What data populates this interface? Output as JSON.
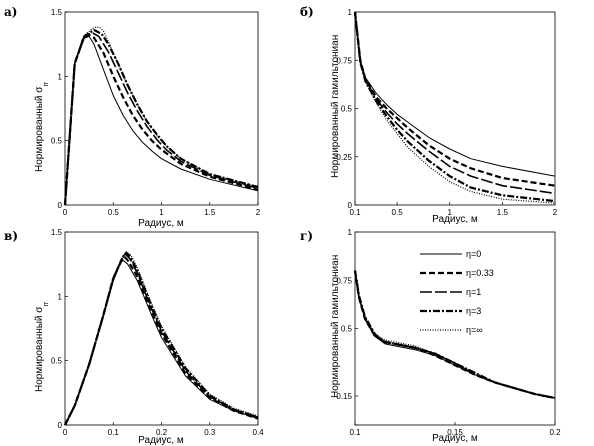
{
  "styles": {
    "solid": {
      "width": 1.0,
      "dash": ""
    },
    "dash": {
      "width": 2.2,
      "dash": "6,3"
    },
    "longdash": {
      "width": 1.6,
      "dash": "12,3"
    },
    "dashdot": {
      "width": 2.2,
      "dash": "7,2,2,2"
    },
    "dotted": {
      "width": 1.2,
      "dash": "1,1.5"
    }
  },
  "legend": [
    {
      "label": "η=0",
      "style": "solid"
    },
    {
      "label": "η=0.33",
      "style": "dash"
    },
    {
      "label": "η=1",
      "style": "longdash"
    },
    {
      "label": "η=3",
      "style": "dashdot"
    },
    {
      "label": "η=∞",
      "style": "dotted"
    }
  ],
  "chart_data": [
    {
      "type": "line",
      "panel_label": "а)",
      "xlabel": "Радиус, м",
      "ylabel": "Нормированный σ",
      "ylabel_sub": "rr",
      "xlim": [
        0,
        2
      ],
      "ylim": [
        0,
        1.5
      ],
      "xticks": [
        0,
        0.5,
        1,
        1.5,
        2
      ],
      "xtick_labels": [
        "0",
        "0.5",
        "1",
        "1.5",
        "2"
      ],
      "yticks": [
        0,
        0.5,
        1,
        1.5
      ],
      "ytick_labels": [
        "0",
        "0.5",
        "1",
        "1.5"
      ],
      "series": [
        {
          "style": "solid",
          "x": [
            0,
            0.1,
            0.18,
            0.25,
            0.3,
            0.4,
            0.5,
            0.6,
            0.7,
            0.8,
            0.9,
            1.0,
            1.2,
            1.5,
            2.0
          ],
          "y": [
            0,
            1.1,
            1.29,
            1.31,
            1.25,
            1.05,
            0.85,
            0.7,
            0.58,
            0.49,
            0.42,
            0.36,
            0.28,
            0.2,
            0.11
          ]
        },
        {
          "style": "dash",
          "x": [
            0,
            0.1,
            0.2,
            0.25,
            0.3,
            0.4,
            0.5,
            0.6,
            0.7,
            0.8,
            0.9,
            1.0,
            1.2,
            1.5,
            2.0
          ],
          "y": [
            0,
            1.1,
            1.31,
            1.32,
            1.3,
            1.18,
            1.0,
            0.84,
            0.7,
            0.59,
            0.5,
            0.43,
            0.32,
            0.22,
            0.12
          ]
        },
        {
          "style": "longdash",
          "x": [
            0,
            0.1,
            0.2,
            0.28,
            0.35,
            0.45,
            0.55,
            0.65,
            0.75,
            0.85,
            0.95,
            1.05,
            1.2,
            1.5,
            2.0
          ],
          "y": [
            0,
            1.1,
            1.31,
            1.34,
            1.31,
            1.19,
            1.03,
            0.87,
            0.73,
            0.61,
            0.51,
            0.43,
            0.34,
            0.23,
            0.13
          ]
        },
        {
          "style": "dashdot",
          "x": [
            0,
            0.1,
            0.2,
            0.3,
            0.38,
            0.45,
            0.55,
            0.65,
            0.75,
            0.85,
            0.95,
            1.05,
            1.2,
            1.5,
            2.0
          ],
          "y": [
            0,
            1.1,
            1.31,
            1.36,
            1.33,
            1.25,
            1.1,
            0.93,
            0.78,
            0.65,
            0.55,
            0.46,
            0.36,
            0.24,
            0.14
          ]
        },
        {
          "style": "dotted",
          "x": [
            0,
            0.1,
            0.2,
            0.3,
            0.36,
            0.4,
            0.45,
            0.55,
            0.65,
            0.75,
            0.85,
            0.95,
            1.05,
            1.2,
            1.5,
            2.0
          ],
          "y": [
            0,
            1.1,
            1.32,
            1.38,
            1.38,
            1.35,
            1.27,
            1.1,
            0.93,
            0.78,
            0.65,
            0.54,
            0.46,
            0.36,
            0.24,
            0.14
          ]
        }
      ]
    },
    {
      "type": "line",
      "panel_label": "б)",
      "xlabel": "Радиус, м",
      "ylabel": "Нормированный гамильтониан",
      "ylabel_sub": "",
      "xlim": [
        0.1,
        2
      ],
      "ylim": [
        0,
        1
      ],
      "xticks": [
        0.1,
        0.5,
        1,
        1.5,
        2
      ],
      "xtick_labels": [
        "0.1",
        "0.5",
        "1",
        "1.5",
        "2"
      ],
      "yticks": [
        0,
        0.25,
        0.5,
        0.75,
        1
      ],
      "ytick_labels": [
        "0",
        "0.25",
        "0.5",
        "0.75",
        "1"
      ],
      "series": [
        {
          "style": "solid",
          "x": [
            0.1,
            0.15,
            0.2,
            0.3,
            0.4,
            0.5,
            0.6,
            0.8,
            1.0,
            1.2,
            1.5,
            2.0
          ],
          "y": [
            1.0,
            0.75,
            0.66,
            0.58,
            0.52,
            0.47,
            0.43,
            0.35,
            0.29,
            0.24,
            0.2,
            0.15
          ]
        },
        {
          "style": "dash",
          "x": [
            0.1,
            0.15,
            0.2,
            0.3,
            0.4,
            0.5,
            0.6,
            0.8,
            1.0,
            1.2,
            1.5,
            2.0
          ],
          "y": [
            1.0,
            0.75,
            0.65,
            0.56,
            0.5,
            0.45,
            0.4,
            0.31,
            0.24,
            0.19,
            0.14,
            0.1
          ]
        },
        {
          "style": "longdash",
          "x": [
            0.1,
            0.15,
            0.2,
            0.3,
            0.4,
            0.5,
            0.6,
            0.8,
            1.0,
            1.2,
            1.5,
            2.0
          ],
          "y": [
            1.0,
            0.74,
            0.65,
            0.55,
            0.48,
            0.42,
            0.37,
            0.28,
            0.2,
            0.15,
            0.1,
            0.06
          ]
        },
        {
          "style": "dashdot",
          "x": [
            0.1,
            0.15,
            0.2,
            0.3,
            0.4,
            0.5,
            0.6,
            0.8,
            1.0,
            1.2,
            1.5,
            2.0
          ],
          "y": [
            1.0,
            0.74,
            0.64,
            0.54,
            0.46,
            0.39,
            0.33,
            0.23,
            0.15,
            0.09,
            0.05,
            0.02
          ]
        },
        {
          "style": "dotted",
          "x": [
            0.1,
            0.15,
            0.2,
            0.3,
            0.4,
            0.5,
            0.6,
            0.8,
            1.0,
            1.2,
            1.5,
            2.0
          ],
          "y": [
            1.0,
            0.74,
            0.64,
            0.53,
            0.44,
            0.37,
            0.3,
            0.2,
            0.12,
            0.07,
            0.03,
            0.01
          ]
        }
      ]
    },
    {
      "type": "line",
      "panel_label": "в)",
      "xlabel": "Радиус, м",
      "ylabel": "Нормированный σ",
      "ylabel_sub": "rr",
      "xlim": [
        0,
        0.4
      ],
      "ylim": [
        0,
        1.5
      ],
      "xticks": [
        0,
        0.1,
        0.2,
        0.3,
        0.4
      ],
      "xtick_labels": [
        "0",
        "0.1",
        "0.2",
        "0.3",
        "0.4"
      ],
      "yticks": [
        0,
        0.5,
        1,
        1.5
      ],
      "ytick_labels": [
        "0",
        "0.5",
        "1",
        "1.5"
      ],
      "series": [
        {
          "style": "solid",
          "x": [
            0,
            0.02,
            0.05,
            0.08,
            0.1,
            0.115,
            0.12,
            0.13,
            0.15,
            0.18,
            0.2,
            0.25,
            0.3,
            0.35,
            0.4
          ],
          "y": [
            0,
            0.15,
            0.47,
            0.85,
            1.12,
            1.26,
            1.28,
            1.25,
            1.12,
            0.85,
            0.68,
            0.38,
            0.2,
            0.11,
            0.05
          ]
        },
        {
          "style": "dash",
          "x": [
            0,
            0.02,
            0.05,
            0.08,
            0.1,
            0.118,
            0.123,
            0.13,
            0.15,
            0.18,
            0.2,
            0.25,
            0.3,
            0.35,
            0.4
          ],
          "y": [
            0,
            0.15,
            0.47,
            0.86,
            1.14,
            1.29,
            1.31,
            1.28,
            1.15,
            0.88,
            0.71,
            0.4,
            0.21,
            0.11,
            0.05
          ]
        },
        {
          "style": "longdash",
          "x": [
            0,
            0.02,
            0.05,
            0.08,
            0.1,
            0.12,
            0.125,
            0.135,
            0.15,
            0.18,
            0.2,
            0.25,
            0.3,
            0.35,
            0.4
          ],
          "y": [
            0,
            0.15,
            0.47,
            0.86,
            1.14,
            1.31,
            1.33,
            1.29,
            1.18,
            0.9,
            0.73,
            0.42,
            0.22,
            0.12,
            0.06
          ]
        },
        {
          "style": "dashdot",
          "x": [
            0,
            0.02,
            0.05,
            0.08,
            0.1,
            0.122,
            0.127,
            0.135,
            0.15,
            0.18,
            0.2,
            0.25,
            0.3,
            0.35,
            0.4
          ],
          "y": [
            0,
            0.15,
            0.47,
            0.86,
            1.14,
            1.32,
            1.34,
            1.31,
            1.2,
            0.92,
            0.75,
            0.44,
            0.23,
            0.12,
            0.06
          ]
        },
        {
          "style": "dotted",
          "x": [
            0,
            0.02,
            0.05,
            0.08,
            0.1,
            0.123,
            0.128,
            0.137,
            0.15,
            0.18,
            0.2,
            0.25,
            0.3,
            0.35,
            0.4
          ],
          "y": [
            0,
            0.15,
            0.47,
            0.86,
            1.14,
            1.32,
            1.34,
            1.32,
            1.22,
            0.94,
            0.77,
            0.45,
            0.24,
            0.13,
            0.07
          ]
        }
      ]
    },
    {
      "type": "line",
      "panel_label": "г)",
      "xlabel": "Радиус, м",
      "ylabel": "Нормированный гамильтониан",
      "ylabel_sub": "",
      "xlim": [
        0.1,
        0.2
      ],
      "ylim": [
        0,
        1
      ],
      "xticks": [
        0.1,
        0.15,
        0.2
      ],
      "xtick_labels": [
        "0.1",
        "0.15",
        "0.2"
      ],
      "yticks": [
        0,
        0.15,
        0.5,
        0.75,
        1
      ],
      "ytick_labels": [
        "",
        "0.15",
        "0.5",
        "0.75",
        "1"
      ],
      "series": [
        {
          "style": "solid",
          "x": [
            0.1,
            0.102,
            0.105,
            0.11,
            0.115,
            0.12,
            0.13,
            0.14,
            0.15,
            0.16,
            0.17,
            0.18,
            0.19,
            0.2
          ],
          "y": [
            0.8,
            0.66,
            0.55,
            0.46,
            0.42,
            0.41,
            0.39,
            0.36,
            0.31,
            0.26,
            0.22,
            0.19,
            0.16,
            0.14
          ]
        },
        {
          "style": "dash",
          "x": [
            0.1,
            0.102,
            0.105,
            0.11,
            0.115,
            0.12,
            0.13,
            0.14,
            0.15,
            0.16,
            0.17,
            0.18,
            0.19,
            0.2
          ],
          "y": [
            0.8,
            0.66,
            0.55,
            0.46,
            0.43,
            0.42,
            0.4,
            0.36,
            0.31,
            0.26,
            0.22,
            0.19,
            0.16,
            0.14
          ]
        },
        {
          "style": "longdash",
          "x": [
            0.1,
            0.102,
            0.105,
            0.11,
            0.115,
            0.12,
            0.13,
            0.14,
            0.15,
            0.16,
            0.17,
            0.18,
            0.19,
            0.2
          ],
          "y": [
            0.8,
            0.66,
            0.55,
            0.46,
            0.43,
            0.42,
            0.4,
            0.37,
            0.32,
            0.26,
            0.22,
            0.19,
            0.16,
            0.14
          ]
        },
        {
          "style": "dashdot",
          "x": [
            0.1,
            0.102,
            0.105,
            0.11,
            0.115,
            0.12,
            0.13,
            0.14,
            0.15,
            0.16,
            0.17,
            0.18,
            0.19,
            0.2
          ],
          "y": [
            0.8,
            0.67,
            0.56,
            0.47,
            0.43,
            0.42,
            0.4,
            0.37,
            0.32,
            0.27,
            0.22,
            0.19,
            0.16,
            0.14
          ]
        },
        {
          "style": "dotted",
          "x": [
            0.1,
            0.102,
            0.105,
            0.11,
            0.115,
            0.12,
            0.13,
            0.14,
            0.15,
            0.16,
            0.17,
            0.18,
            0.19,
            0.2
          ],
          "y": [
            0.8,
            0.67,
            0.56,
            0.47,
            0.44,
            0.43,
            0.41,
            0.37,
            0.32,
            0.27,
            0.22,
            0.19,
            0.16,
            0.14
          ]
        }
      ]
    }
  ]
}
